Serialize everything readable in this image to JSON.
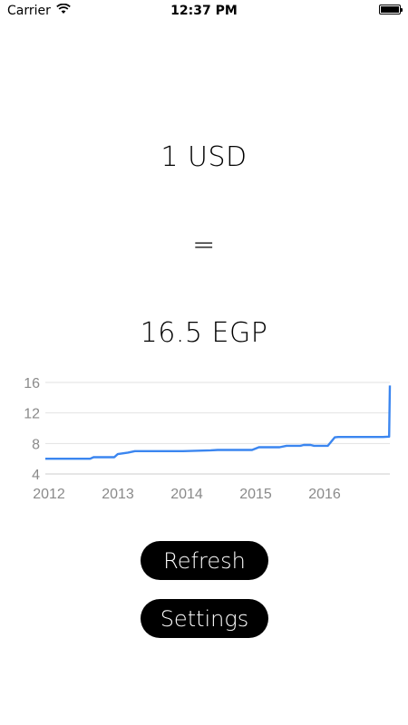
{
  "status_bar": {
    "carrier": "Carrier",
    "time": "12:37 PM",
    "battery_level": 1.0
  },
  "conversion": {
    "from": "1 USD",
    "equals": "=",
    "to": "16.5 EGP"
  },
  "buttons": {
    "refresh_label": "Refresh",
    "settings_label": "Settings"
  },
  "chart_data": {
    "type": "line",
    "title": "",
    "xlabel": "",
    "ylabel": "",
    "ylim": [
      4,
      16
    ],
    "xlim": [
      2012,
      2017
    ],
    "y_ticks": [
      "16",
      "12",
      "8",
      "4"
    ],
    "y_tick_values": [
      16,
      12,
      8,
      4
    ],
    "x_ticks": [
      "2012",
      "2013",
      "2014",
      "2015",
      "2016"
    ],
    "x_tick_values": [
      2012,
      2013,
      2014,
      2015,
      2016
    ],
    "grid": true,
    "line_color": "#3b86f0",
    "series": [
      {
        "x": [
          2012.0,
          2012.65,
          2012.7,
          2013.0,
          2013.05,
          2013.2,
          2013.3,
          2014.0,
          2014.4,
          2014.5,
          2015.0,
          2015.1,
          2015.4,
          2015.5,
          2015.7,
          2015.75,
          2015.85,
          2015.9,
          2016.1,
          2016.2,
          2016.25,
          2016.6,
          2016.9,
          2016.99,
          2017.0
        ],
        "y": [
          6.0,
          6.0,
          6.2,
          6.2,
          6.6,
          6.8,
          7.0,
          7.0,
          7.1,
          7.15,
          7.15,
          7.5,
          7.5,
          7.7,
          7.7,
          7.8,
          7.8,
          7.7,
          7.7,
          8.8,
          8.85,
          8.85,
          8.85,
          8.9,
          15.6
        ]
      }
    ]
  }
}
